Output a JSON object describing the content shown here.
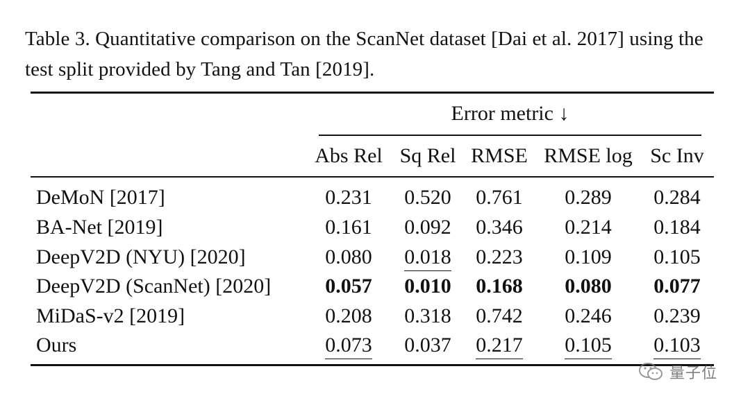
{
  "caption": "Table 3.  Quantitative comparison on the ScanNet dataset [Dai et al. 2017] using the test split provided by Tang and Tan [2019].",
  "group_header": "Error metric ↓",
  "columns": [
    "Abs Rel",
    "Sq Rel",
    "RMSE",
    "RMSE log",
    "Sc Inv"
  ],
  "rows": [
    {
      "method": "DeMoN [2017]",
      "values": [
        "0.231",
        "0.520",
        "0.761",
        "0.289",
        "0.284"
      ],
      "bold": [
        false,
        false,
        false,
        false,
        false
      ],
      "underline": [
        false,
        false,
        false,
        false,
        false
      ]
    },
    {
      "method": "BA-Net [2019]",
      "values": [
        "0.161",
        "0.092",
        "0.346",
        "0.214",
        "0.184"
      ],
      "bold": [
        false,
        false,
        false,
        false,
        false
      ],
      "underline": [
        false,
        false,
        false,
        false,
        false
      ]
    },
    {
      "method": "DeepV2D (NYU) [2020]",
      "values": [
        "0.080",
        "0.018",
        "0.223",
        "0.109",
        "0.105"
      ],
      "bold": [
        false,
        false,
        false,
        false,
        false
      ],
      "underline": [
        false,
        true,
        false,
        false,
        false
      ]
    },
    {
      "method": "DeepV2D (ScanNet) [2020]",
      "values": [
        "0.057",
        "0.010",
        "0.168",
        "0.080",
        "0.077"
      ],
      "bold": [
        true,
        true,
        true,
        true,
        true
      ],
      "underline": [
        false,
        false,
        false,
        false,
        false
      ]
    },
    {
      "method": "MiDaS-v2 [2019]",
      "values": [
        "0.208",
        "0.318",
        "0.742",
        "0.246",
        "0.239"
      ],
      "bold": [
        false,
        false,
        false,
        false,
        false
      ],
      "underline": [
        false,
        false,
        false,
        false,
        false
      ]
    },
    {
      "method": "Ours",
      "values": [
        "0.073",
        "0.037",
        "0.217",
        "0.105",
        "0.103"
      ],
      "bold": [
        false,
        false,
        false,
        false,
        false
      ],
      "underline": [
        true,
        false,
        true,
        true,
        true
      ]
    }
  ],
  "watermark": {
    "icon": "wechat-icon",
    "text": "量子位"
  }
}
